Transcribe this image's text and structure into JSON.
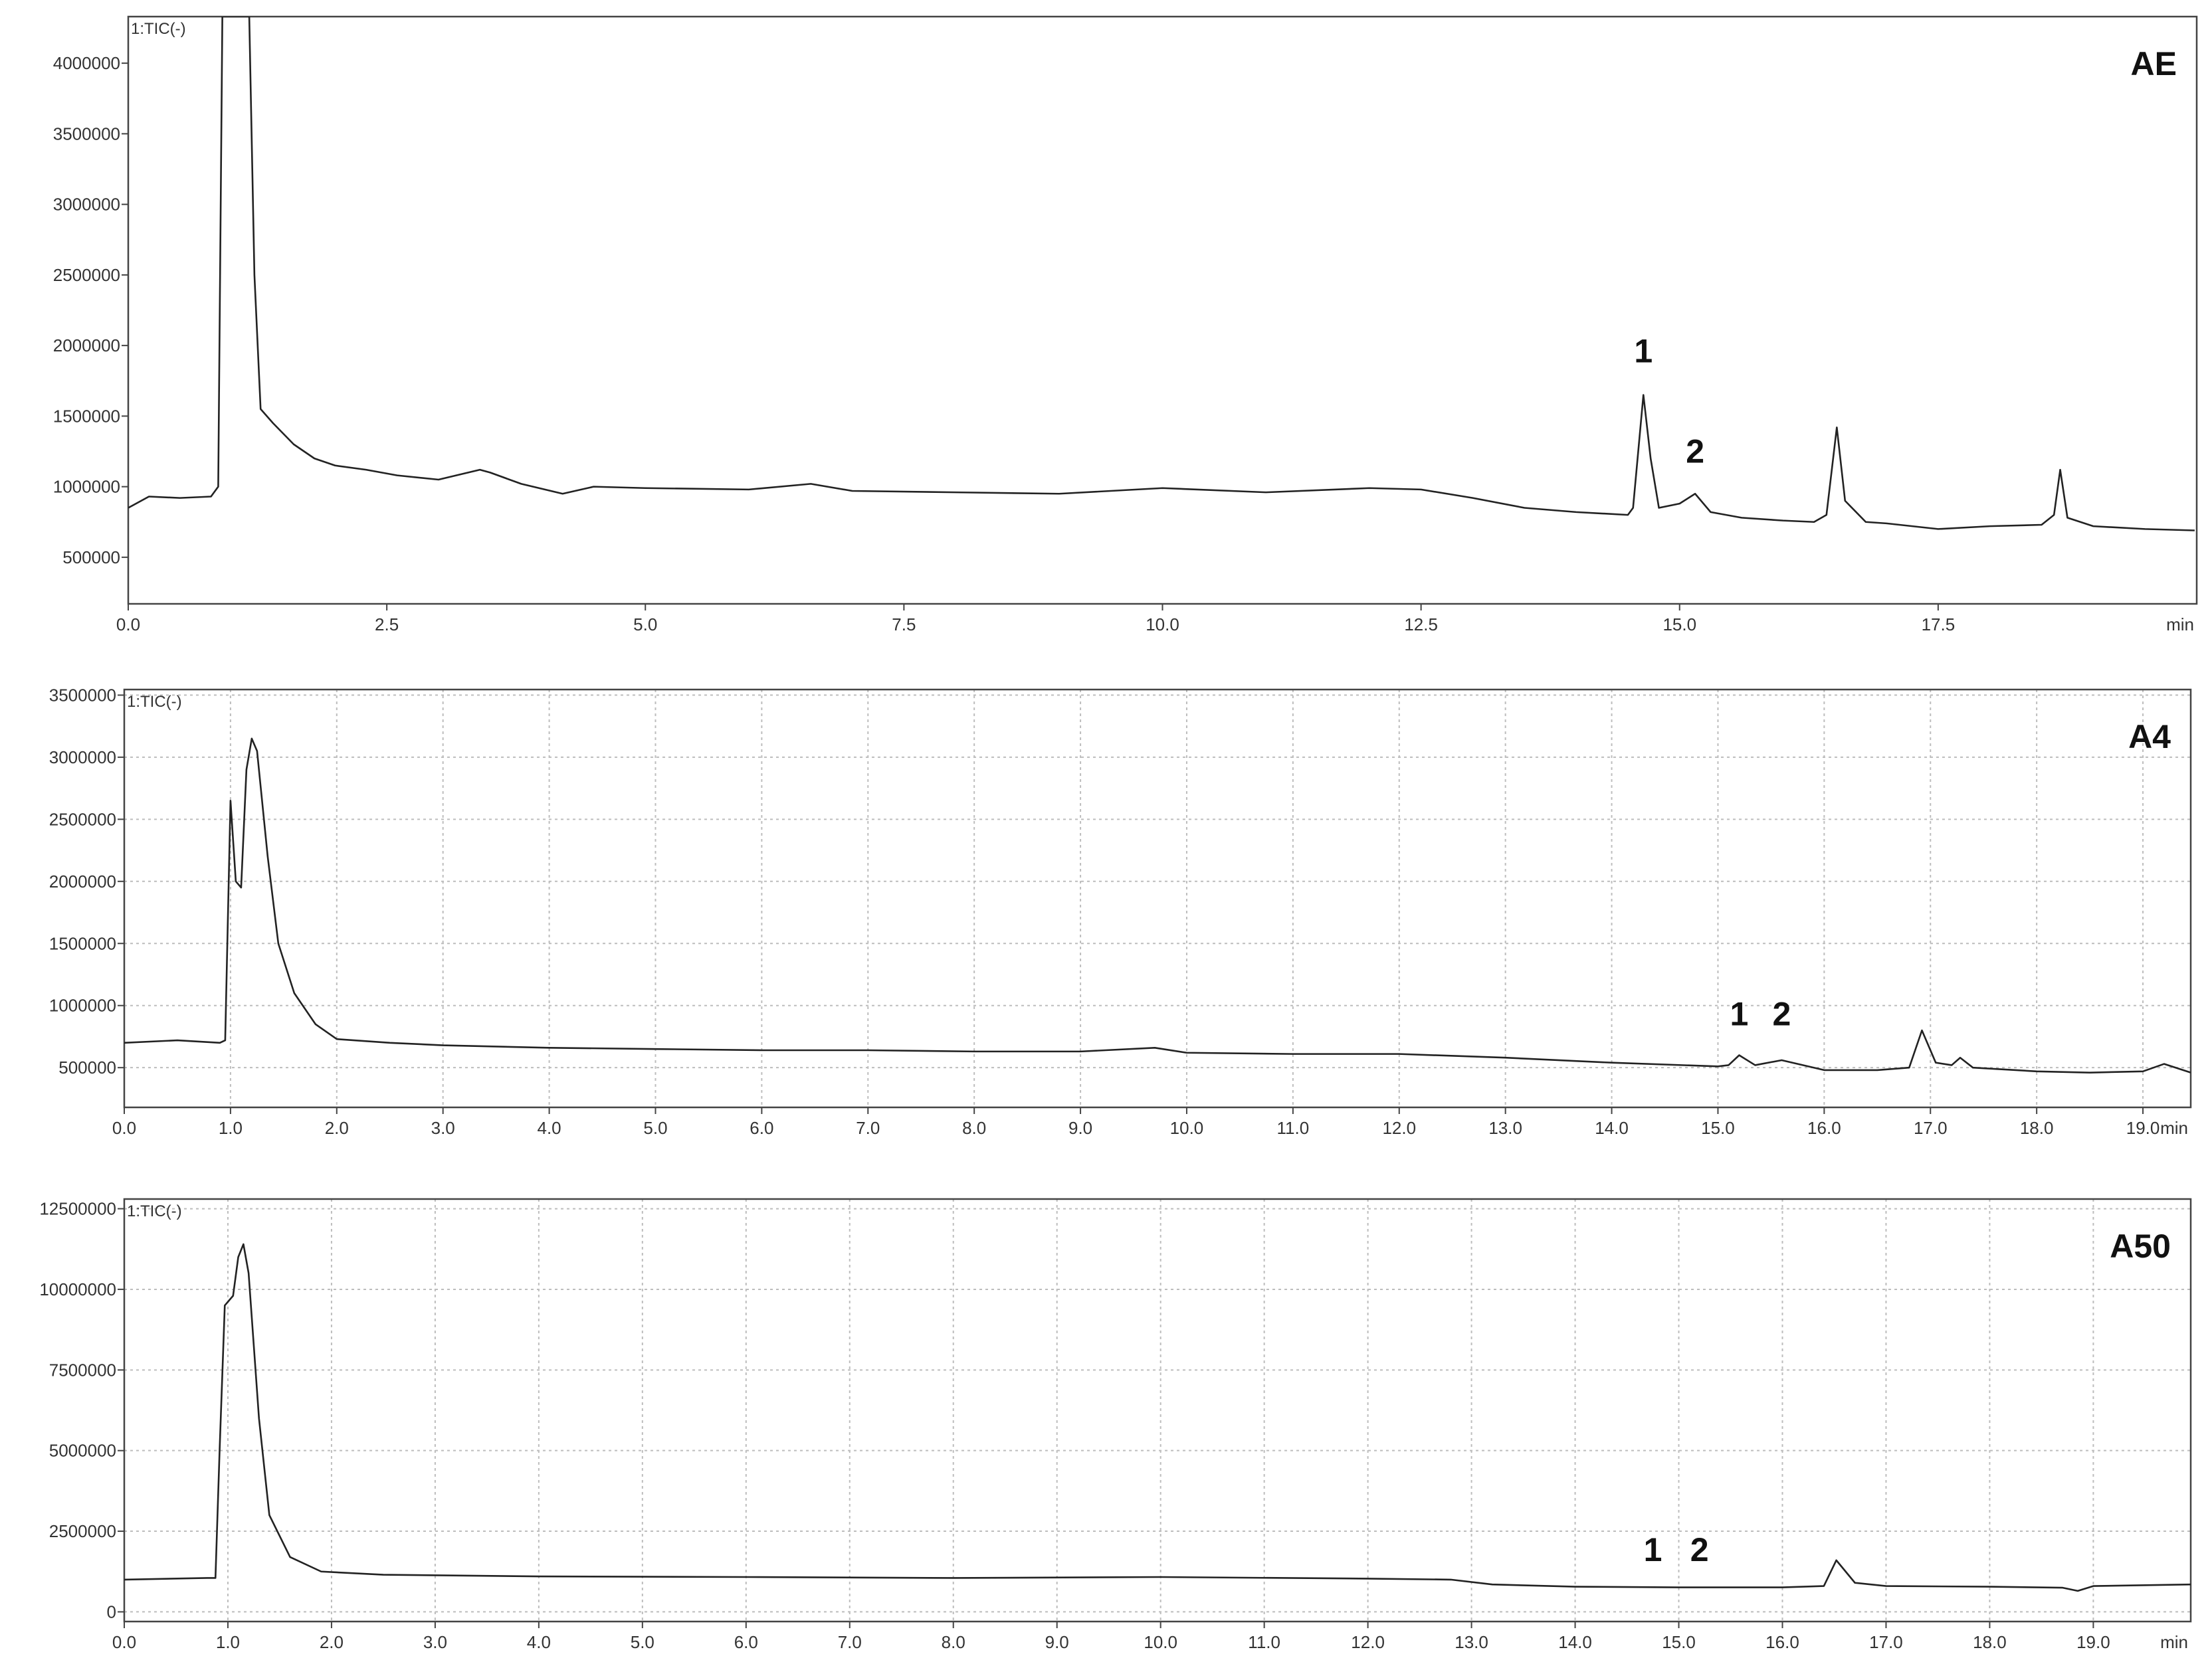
{
  "chart_data": [
    {
      "type": "line",
      "title": "AE",
      "trace_label": "1:TIC(-)",
      "xlabel": "min",
      "color": "#222222",
      "grid": false,
      "xlim": [
        0,
        20
      ],
      "ylim": [
        170000,
        4330000
      ],
      "xticks": [
        {
          "value": 0,
          "label": "0.0"
        },
        2.5,
        {
          "value": 5,
          "label": "5.0"
        },
        7.5,
        {
          "value": 10,
          "label": "10.0"
        },
        12.5,
        {
          "value": 15,
          "label": "15.0"
        },
        17.5
      ],
      "yticks": [
        500000,
        1000000,
        1500000,
        2000000,
        2500000,
        3000000,
        3500000,
        4000000
      ],
      "x": [
        0,
        0.2,
        0.5,
        0.8,
        0.87,
        0.91,
        1.17,
        1.22,
        1.28,
        1.4,
        1.6,
        1.8,
        2.0,
        2.3,
        2.6,
        3.0,
        3.4,
        3.5,
        3.8,
        4.2,
        4.5,
        5.0,
        6.0,
        6.6,
        7.0,
        8.0,
        9.0,
        10.0,
        11.0,
        12.0,
        12.5,
        13.0,
        13.5,
        14.0,
        14.5,
        14.55,
        14.65,
        14.72,
        14.8,
        15.0,
        15.15,
        15.3,
        15.6,
        16.0,
        16.3,
        16.42,
        16.52,
        16.6,
        16.8,
        17.0,
        17.5,
        18.0,
        18.5,
        18.62,
        18.68,
        18.75,
        19.0,
        19.5,
        19.98
      ],
      "values": [
        850000,
        930000,
        920000,
        930000,
        1000000,
        4330000,
        4330000,
        2500000,
        1550000,
        1450000,
        1300000,
        1200000,
        1150000,
        1120000,
        1080000,
        1050000,
        1120000,
        1100000,
        1020000,
        950000,
        1000000,
        990000,
        980000,
        1020000,
        970000,
        960000,
        950000,
        990000,
        960000,
        990000,
        980000,
        920000,
        850000,
        820000,
        800000,
        850000,
        1650000,
        1200000,
        850000,
        880000,
        950000,
        820000,
        780000,
        760000,
        750000,
        800000,
        1420000,
        900000,
        750000,
        740000,
        700000,
        720000,
        730000,
        800000,
        1120000,
        780000,
        720000,
        700000,
        690000
      ],
      "annotations": [
        {
          "text": "1",
          "x": 14.65,
          "y": 1880000
        },
        {
          "text": "2",
          "x": 15.15,
          "y": 1170000
        }
      ]
    },
    {
      "type": "line",
      "title": "A4",
      "trace_label": "1:TIC(-)",
      "xlabel": "min",
      "color": "#222222",
      "grid": true,
      "xlim": [
        0,
        19.45
      ],
      "ylim": [
        180000,
        3545000
      ],
      "xticks": [
        {
          "value": 0,
          "label": "0.0"
        },
        {
          "value": 1,
          "label": "1.0"
        },
        {
          "value": 2,
          "label": "2.0"
        },
        {
          "value": 3,
          "label": "3.0"
        },
        {
          "value": 4,
          "label": "4.0"
        },
        {
          "value": 5,
          "label": "5.0"
        },
        {
          "value": 6,
          "label": "6.0"
        },
        {
          "value": 7,
          "label": "7.0"
        },
        {
          "value": 8,
          "label": "8.0"
        },
        {
          "value": 9,
          "label": "9.0"
        },
        {
          "value": 10,
          "label": "10.0"
        },
        {
          "value": 11,
          "label": "11.0"
        },
        {
          "value": 12,
          "label": "12.0"
        },
        {
          "value": 13,
          "label": "13.0"
        },
        {
          "value": 14,
          "label": "14.0"
        },
        {
          "value": 15,
          "label": "15.0"
        },
        {
          "value": 16,
          "label": "16.0"
        },
        {
          "value": 17,
          "label": "17.0"
        },
        {
          "value": 18,
          "label": "18.0"
        },
        {
          "value": 19,
          "label": "19.0"
        }
      ],
      "yticks": [
        500000,
        1000000,
        1500000,
        2000000,
        2500000,
        3000000,
        3500000
      ],
      "x": [
        0,
        0.5,
        0.9,
        0.95,
        1.0,
        1.05,
        1.1,
        1.15,
        1.2,
        1.25,
        1.35,
        1.45,
        1.6,
        1.8,
        2.0,
        2.5,
        3.0,
        4.0,
        5.0,
        6.0,
        7.0,
        8.0,
        9.0,
        9.7,
        10.0,
        11.0,
        12.0,
        13.0,
        14.0,
        15.0,
        15.1,
        15.2,
        15.35,
        15.6,
        16.0,
        16.5,
        16.8,
        16.92,
        17.05,
        17.2,
        17.28,
        17.4,
        18.0,
        18.5,
        19.0,
        19.2,
        19.45
      ],
      "values": [
        700000,
        720000,
        700000,
        720000,
        2650000,
        2000000,
        1950000,
        2900000,
        3150000,
        3050000,
        2200000,
        1500000,
        1100000,
        850000,
        730000,
        700000,
        680000,
        660000,
        650000,
        640000,
        640000,
        630000,
        630000,
        660000,
        620000,
        610000,
        610000,
        580000,
        540000,
        510000,
        520000,
        600000,
        520000,
        560000,
        480000,
        480000,
        500000,
        800000,
        540000,
        520000,
        580000,
        500000,
        470000,
        460000,
        470000,
        530000,
        460000
      ],
      "annotations": [
        {
          "text": "1",
          "x": 15.2,
          "y": 840000
        },
        {
          "text": "2",
          "x": 15.6,
          "y": 840000
        }
      ]
    },
    {
      "type": "line",
      "title": "A50",
      "trace_label": "1:TIC(-)",
      "xlabel": "min",
      "color": "#222222",
      "grid": true,
      "xlim": [
        0,
        19.94
      ],
      "ylim": [
        -300000,
        12800000
      ],
      "xticks": [
        {
          "value": 0,
          "label": "0.0"
        },
        {
          "value": 1,
          "label": "1.0"
        },
        {
          "value": 2,
          "label": "2.0"
        },
        {
          "value": 3,
          "label": "3.0"
        },
        {
          "value": 4,
          "label": "4.0"
        },
        {
          "value": 5,
          "label": "5.0"
        },
        {
          "value": 6,
          "label": "6.0"
        },
        {
          "value": 7,
          "label": "7.0"
        },
        {
          "value": 8,
          "label": "8.0"
        },
        {
          "value": 9,
          "label": "9.0"
        },
        {
          "value": 10,
          "label": "10.0"
        },
        {
          "value": 11,
          "label": "11.0"
        },
        {
          "value": 12,
          "label": "12.0"
        },
        {
          "value": 13,
          "label": "13.0"
        },
        {
          "value": 14,
          "label": "14.0"
        },
        {
          "value": 15,
          "label": "15.0"
        },
        {
          "value": 16,
          "label": "16.0"
        },
        {
          "value": 17,
          "label": "17.0"
        },
        {
          "value": 18,
          "label": "18.0"
        },
        {
          "value": 19,
          "label": "19.0"
        }
      ],
      "yticks": [
        0,
        2500000,
        5000000,
        7500000,
        10000000,
        12500000
      ],
      "x": [
        0,
        0.8,
        0.88,
        0.92,
        0.97,
        1.05,
        1.1,
        1.15,
        1.2,
        1.3,
        1.4,
        1.6,
        1.9,
        2.5,
        4.0,
        6.0,
        8.0,
        10.0,
        12.0,
        12.8,
        13.2,
        14.0,
        15.0,
        16.0,
        16.4,
        16.52,
        16.7,
        17.0,
        18.0,
        18.7,
        18.85,
        19.0,
        19.94
      ],
      "values": [
        1000000,
        1050000,
        1050000,
        5000000,
        9500000,
        9800000,
        11000000,
        11400000,
        10500000,
        6000000,
        3000000,
        1700000,
        1250000,
        1150000,
        1100000,
        1080000,
        1050000,
        1080000,
        1030000,
        1000000,
        850000,
        780000,
        760000,
        760000,
        800000,
        1600000,
        900000,
        800000,
        780000,
        750000,
        650000,
        800000,
        850000
      ],
      "annotations": [
        {
          "text": "1",
          "x": 14.75,
          "y": 1570000
        },
        {
          "text": "2",
          "x": 15.2,
          "y": 1570000
        }
      ]
    }
  ]
}
